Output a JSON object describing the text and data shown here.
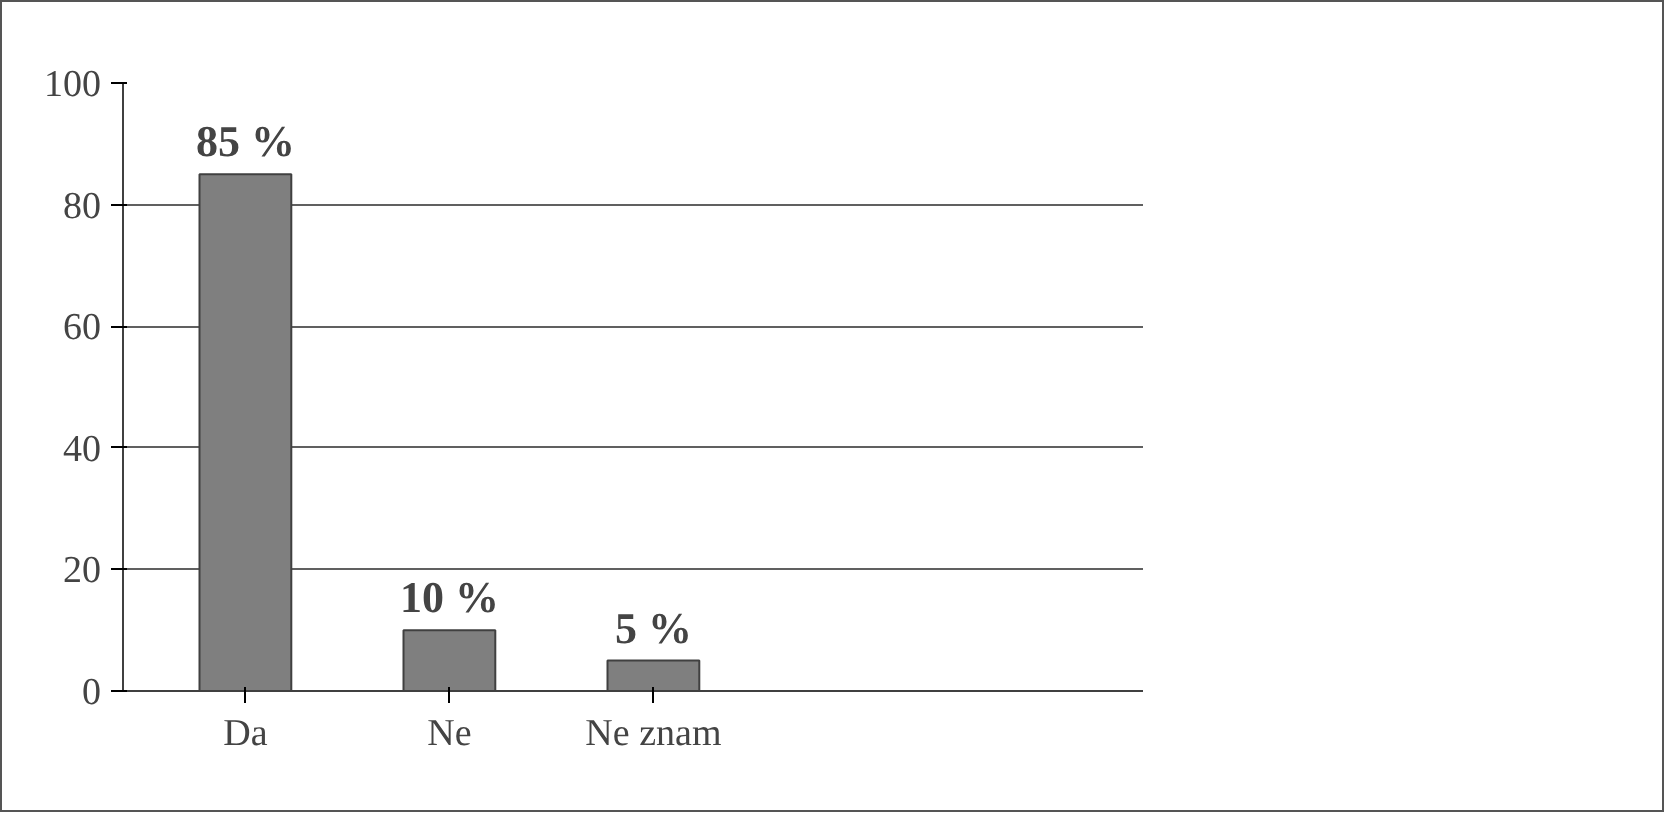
{
  "chart_data": {
    "type": "bar",
    "categories": [
      "Da",
      "Ne",
      "Ne znam"
    ],
    "values": [
      85,
      10,
      5
    ],
    "value_labels": [
      "85 %",
      "10 %",
      "5 %"
    ],
    "color": "#7f7f7f",
    "ylim": [
      0,
      100
    ],
    "yticks": [
      0,
      20,
      40,
      60,
      80,
      100
    ],
    "grid": "y"
  }
}
